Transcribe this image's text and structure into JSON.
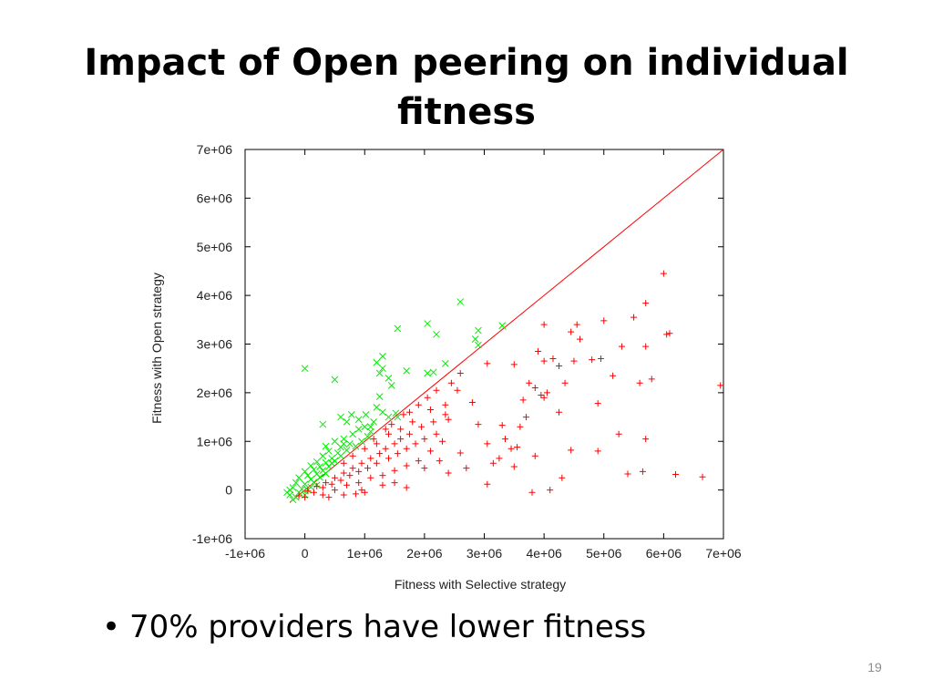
{
  "slide": {
    "title_line1": "Impact of Open peering on individual",
    "title_line2": "fitness",
    "bullet_symbol": "•",
    "bullet_text": "70% providers have lower fitness",
    "page_number": "19"
  },
  "chart_data": {
    "type": "scatter",
    "title": "",
    "xlabel": "Fitness with Selective strategy",
    "ylabel": "Fitness with Open strategy",
    "xlim": [
      -1000000,
      7000000
    ],
    "ylim": [
      -1000000,
      7000000
    ],
    "x_ticks": [
      -1000000,
      0,
      1000000,
      2000000,
      3000000,
      4000000,
      5000000,
      6000000,
      7000000
    ],
    "x_tick_labels": [
      "-1e+06",
      "0",
      "1e+06",
      "2e+06",
      "3e+06",
      "4e+06",
      "5e+06",
      "6e+06",
      "7e+06"
    ],
    "y_ticks": [
      -1000000,
      0,
      1000000,
      2000000,
      3000000,
      4000000,
      5000000,
      6000000,
      7000000
    ],
    "y_tick_labels": [
      "-1e+06",
      "0",
      "1e+06",
      "2e+06",
      "3e+06",
      "4e+06",
      "5e+06",
      "6e+06",
      "7e+06"
    ],
    "grid": false,
    "reference_line": {
      "from": [
        -250000,
        -250000
      ],
      "to": [
        7000000,
        7000000
      ],
      "color": "#ff0000"
    },
    "series": [
      {
        "marker": "x",
        "color": "#00ee00",
        "points": [
          [
            2600000,
            3870000
          ],
          [
            2050000,
            3420000
          ],
          [
            1550000,
            3320000
          ],
          [
            3300000,
            3380000
          ],
          [
            2900000,
            3280000
          ],
          [
            2200000,
            3200000
          ],
          [
            2850000,
            3100000
          ],
          [
            2900000,
            2980000
          ],
          [
            1300000,
            2750000
          ],
          [
            1200000,
            2620000
          ],
          [
            2350000,
            2600000
          ],
          [
            1300000,
            2500000
          ],
          [
            1700000,
            2450000
          ],
          [
            2050000,
            2400000
          ],
          [
            0,
            2500000
          ],
          [
            1250000,
            2400000
          ],
          [
            2150000,
            2420000
          ],
          [
            500000,
            2270000
          ],
          [
            1400000,
            2300000
          ],
          [
            1450000,
            2150000
          ],
          [
            1250000,
            1920000
          ],
          [
            1200000,
            1700000
          ],
          [
            1520000,
            1580000
          ],
          [
            1400000,
            1500000
          ],
          [
            780000,
            1550000
          ],
          [
            1020000,
            1550000
          ],
          [
            900000,
            1450000
          ],
          [
            1550000,
            1500000
          ],
          [
            1150000,
            1400000
          ],
          [
            1300000,
            1600000
          ],
          [
            1000000,
            1300000
          ],
          [
            1100000,
            1200000
          ],
          [
            300000,
            1350000
          ],
          [
            600000,
            1500000
          ],
          [
            700000,
            1400000
          ],
          [
            900000,
            1250000
          ],
          [
            800000,
            1150000
          ],
          [
            1050000,
            1100000
          ],
          [
            500000,
            1000000
          ],
          [
            650000,
            1050000
          ],
          [
            750000,
            950000
          ],
          [
            600000,
            880000
          ],
          [
            850000,
            900000
          ],
          [
            400000,
            800000
          ],
          [
            550000,
            760000
          ],
          [
            700000,
            820000
          ],
          [
            300000,
            700000
          ],
          [
            450000,
            650000
          ],
          [
            600000,
            700000
          ],
          [
            200000,
            580000
          ],
          [
            350000,
            560000
          ],
          [
            500000,
            600000
          ],
          [
            250000,
            480000
          ],
          [
            100000,
            500000
          ],
          [
            400000,
            480000
          ],
          [
            150000,
            420000
          ],
          [
            300000,
            400000
          ],
          [
            0,
            380000
          ],
          [
            200000,
            330000
          ],
          [
            50000,
            300000
          ],
          [
            350000,
            340000
          ],
          [
            -100000,
            250000
          ],
          [
            100000,
            220000
          ],
          [
            250000,
            260000
          ],
          [
            -150000,
            150000
          ],
          [
            0,
            120000
          ],
          [
            150000,
            160000
          ],
          [
            -200000,
            50000
          ],
          [
            -50000,
            20000
          ],
          [
            100000,
            60000
          ],
          [
            -250000,
            -100000
          ],
          [
            -150000,
            -150000
          ],
          [
            -200000,
            -200000
          ],
          [
            -100000,
            -50000
          ],
          [
            0,
            -100000
          ],
          [
            50000,
            0
          ],
          [
            -300000,
            -50000
          ],
          [
            -250000,
            0
          ],
          [
            200000,
            100000
          ],
          [
            450000,
            550000
          ],
          [
            650000,
            950000
          ],
          [
            950000,
            1000000
          ],
          [
            1100000,
            1300000
          ],
          [
            350000,
            900000
          ]
        ]
      },
      {
        "marker": "+",
        "color": "#ff0000",
        "points": [
          [
            6000000,
            4450000
          ],
          [
            5700000,
            3840000
          ],
          [
            5500000,
            3550000
          ],
          [
            6100000,
            3220000
          ],
          [
            6050000,
            3200000
          ],
          [
            4000000,
            3400000
          ],
          [
            4550000,
            3400000
          ],
          [
            5000000,
            3480000
          ],
          [
            4450000,
            3250000
          ],
          [
            4600000,
            3100000
          ],
          [
            5300000,
            2950000
          ],
          [
            5700000,
            2950000
          ],
          [
            3900000,
            2850000
          ],
          [
            4000000,
            2650000
          ],
          [
            4150000,
            2700000
          ],
          [
            4250000,
            2550000
          ],
          [
            4500000,
            2650000
          ],
          [
            4800000,
            2680000
          ],
          [
            4950000,
            2700000
          ],
          [
            3500000,
            2580000
          ],
          [
            3050000,
            2600000
          ],
          [
            2600000,
            2400000
          ],
          [
            5150000,
            2350000
          ],
          [
            5800000,
            2280000
          ],
          [
            5600000,
            2200000
          ],
          [
            3750000,
            2200000
          ],
          [
            3850000,
            2100000
          ],
          [
            4050000,
            2000000
          ],
          [
            4350000,
            2200000
          ],
          [
            6950000,
            2150000
          ],
          [
            3950000,
            1950000
          ],
          [
            4000000,
            1900000
          ],
          [
            2800000,
            1800000
          ],
          [
            3650000,
            1850000
          ],
          [
            4900000,
            1780000
          ],
          [
            3700000,
            1500000
          ],
          [
            4250000,
            1600000
          ],
          [
            2350000,
            1550000
          ],
          [
            2900000,
            1350000
          ],
          [
            3300000,
            1330000
          ],
          [
            3600000,
            1300000
          ],
          [
            5250000,
            1150000
          ],
          [
            5700000,
            1050000
          ],
          [
            3350000,
            1050000
          ],
          [
            3050000,
            950000
          ],
          [
            3550000,
            880000
          ],
          [
            4450000,
            820000
          ],
          [
            4900000,
            800000
          ],
          [
            3450000,
            850000
          ],
          [
            2600000,
            760000
          ],
          [
            3250000,
            650000
          ],
          [
            3850000,
            700000
          ],
          [
            3150000,
            550000
          ],
          [
            3500000,
            480000
          ],
          [
            2700000,
            450000
          ],
          [
            6200000,
            320000
          ],
          [
            5400000,
            330000
          ],
          [
            5650000,
            380000
          ],
          [
            6650000,
            270000
          ],
          [
            4300000,
            250000
          ],
          [
            3050000,
            120000
          ],
          [
            3800000,
            -50000
          ],
          [
            4100000,
            0
          ],
          [
            2400000,
            350000
          ],
          [
            2000000,
            450000
          ],
          [
            2250000,
            600000
          ],
          [
            2300000,
            1000000
          ],
          [
            2400000,
            1450000
          ],
          [
            2100000,
            1650000
          ],
          [
            2550000,
            2050000
          ],
          [
            2350000,
            1750000
          ],
          [
            2150000,
            1400000
          ],
          [
            1950000,
            1300000
          ],
          [
            2000000,
            1050000
          ],
          [
            1750000,
            1150000
          ],
          [
            1850000,
            950000
          ],
          [
            1600000,
            1050000
          ],
          [
            1700000,
            850000
          ],
          [
            1500000,
            950000
          ],
          [
            1550000,
            750000
          ],
          [
            1350000,
            850000
          ],
          [
            1400000,
            650000
          ],
          [
            1250000,
            750000
          ],
          [
            1200000,
            550000
          ],
          [
            1100000,
            650000
          ],
          [
            1050000,
            450000
          ],
          [
            950000,
            550000
          ],
          [
            900000,
            380000
          ],
          [
            800000,
            450000
          ],
          [
            750000,
            300000
          ],
          [
            650000,
            350000
          ],
          [
            600000,
            200000
          ],
          [
            500000,
            250000
          ],
          [
            450000,
            120000
          ],
          [
            350000,
            150000
          ],
          [
            300000,
            50000
          ],
          [
            200000,
            80000
          ],
          [
            150000,
            -50000
          ],
          [
            50000,
            -20000
          ],
          [
            0,
            -150000
          ],
          [
            -100000,
            -120000
          ],
          [
            300000,
            -100000
          ],
          [
            500000,
            0
          ],
          [
            700000,
            100000
          ],
          [
            900000,
            150000
          ],
          [
            1100000,
            250000
          ],
          [
            1300000,
            300000
          ],
          [
            1500000,
            400000
          ],
          [
            1700000,
            500000
          ],
          [
            1900000,
            600000
          ],
          [
            2100000,
            800000
          ],
          [
            2200000,
            1150000
          ],
          [
            1800000,
            1400000
          ],
          [
            1600000,
            1250000
          ],
          [
            1400000,
            1150000
          ],
          [
            1200000,
            950000
          ],
          [
            1000000,
            850000
          ],
          [
            800000,
            700000
          ],
          [
            650000,
            550000
          ],
          [
            1150000,
            1050000
          ],
          [
            1450000,
            1350000
          ],
          [
            1650000,
            1550000
          ],
          [
            1900000,
            1750000
          ],
          [
            2050000,
            1900000
          ],
          [
            2200000,
            2050000
          ],
          [
            2450000,
            2200000
          ],
          [
            1750000,
            1600000
          ],
          [
            1350000,
            1250000
          ],
          [
            950000,
            0
          ],
          [
            1000000,
            -50000
          ],
          [
            850000,
            -80000
          ],
          [
            1300000,
            100000
          ],
          [
            1500000,
            150000
          ],
          [
            1700000,
            50000
          ],
          [
            650000,
            -100000
          ],
          [
            400000,
            -150000
          ]
        ]
      }
    ]
  }
}
